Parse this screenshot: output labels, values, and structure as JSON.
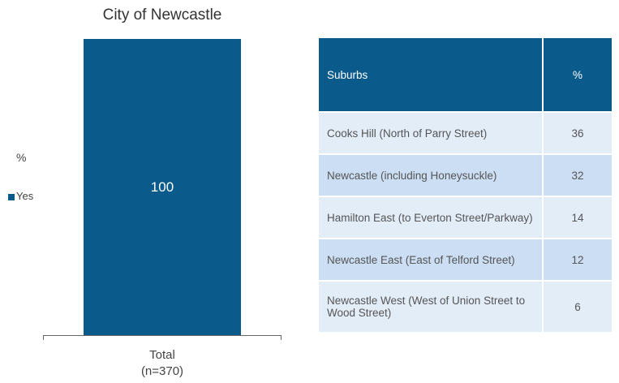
{
  "chart_data": {
    "type": "bar",
    "title": "City of Newcastle",
    "legend_title": "%",
    "categories": [
      "Total (n=370)"
    ],
    "series": [
      {
        "name": "Yes",
        "color": "#0b5a8c",
        "values": [
          100
        ]
      }
    ],
    "ylim": [
      0,
      100
    ],
    "legend": "left"
  },
  "table": {
    "header": [
      "Suburbs",
      "%"
    ],
    "rows": [
      [
        "Cooks Hill (North of Parry Street)",
        36
      ],
      [
        "Newcastle (including Honeysuckle)",
        32
      ],
      [
        "Hamilton East (to Everton Street/Parkway)",
        14
      ],
      [
        "Newcastle East (East of Telford Street)",
        12
      ],
      [
        "Newcastle West (West of Union Street to Wood Street)",
        6
      ]
    ]
  }
}
